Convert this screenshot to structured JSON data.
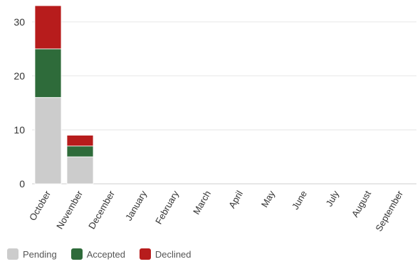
{
  "chart_data": {
    "type": "bar",
    "stacked": true,
    "categories": [
      "October",
      "November",
      "December",
      "January",
      "February",
      "March",
      "April",
      "May",
      "June",
      "July",
      "August",
      "September"
    ],
    "series": [
      {
        "name": "Pending",
        "color": "#cccccc",
        "values": [
          16,
          5,
          0,
          0,
          0,
          0,
          0,
          0,
          0,
          0,
          0,
          0
        ]
      },
      {
        "name": "Accepted",
        "color": "#2e6b3a",
        "values": [
          9,
          2,
          0,
          0,
          0,
          0,
          0,
          0,
          0,
          0,
          0,
          0
        ]
      },
      {
        "name": "Declined",
        "color": "#b71c1c",
        "values": [
          8,
          2,
          0,
          0,
          0,
          0,
          0,
          0,
          0,
          0,
          0,
          0
        ]
      }
    ],
    "yticks": [
      0,
      10,
      20,
      30
    ],
    "ylim": [
      0,
      33
    ],
    "grid": true,
    "legend_position": "bottom-left",
    "title": "",
    "xlabel": "",
    "ylabel": ""
  }
}
